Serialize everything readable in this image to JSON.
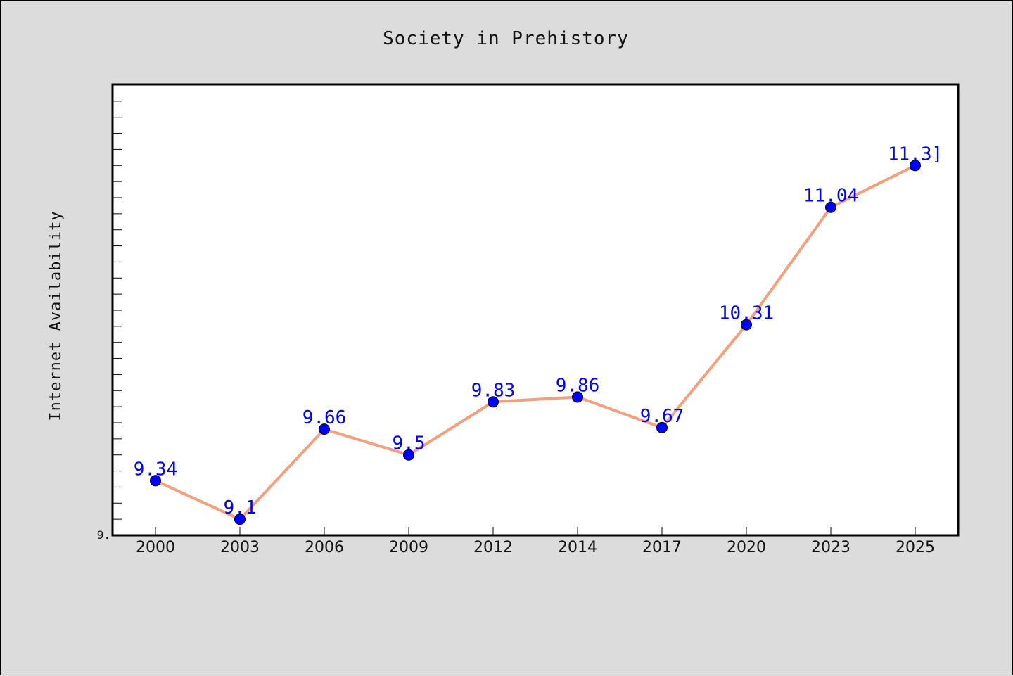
{
  "chart_data": {
    "type": "line",
    "title": "Society in Prehistory",
    "xlabel": "",
    "ylabel": "Internet Availability",
    "categories": [
      "2000",
      "2003",
      "2006",
      "2009",
      "2012",
      "2014",
      "2017",
      "2020",
      "2023",
      "2025"
    ],
    "series": [
      {
        "values": [
          9.34,
          9.1,
          9.66,
          9.5,
          9.83,
          9.86,
          9.67,
          10.31,
          11.04,
          11.3
        ]
      }
    ],
    "data_labels": [
      "9.34",
      "9.1",
      "9.66",
      "9.5",
      "9.83",
      "9.86",
      "9.67",
      "10.31",
      "11.04",
      "11.3]"
    ],
    "ylim": [
      9.0,
      11.8
    ],
    "ytick_labels": [
      "9."
    ],
    "grid": false,
    "colors": {
      "line": "#f4a07e",
      "marker": "#0000ff",
      "label": "#0000ff",
      "background": "#dcdcdc",
      "plot_background": "#ffffff"
    }
  }
}
